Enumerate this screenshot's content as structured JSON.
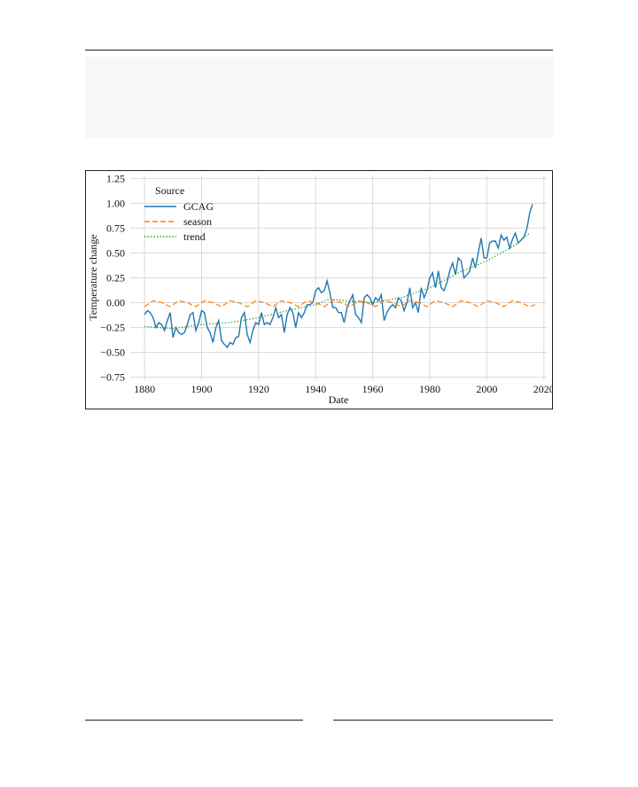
{
  "page": {
    "header_rule": true,
    "footer_rule": true
  },
  "code_box": {
    "lines": []
  },
  "chart_data": {
    "type": "line",
    "title": "",
    "xlabel": "Date",
    "ylabel": "Temperature change",
    "xlim": [
      1875,
      2021
    ],
    "ylim": [
      -0.78,
      1.28
    ],
    "xticks": [
      1880,
      1900,
      1920,
      1940,
      1960,
      1980,
      2000,
      2020
    ],
    "yticks": [
      -0.75,
      -0.5,
      -0.25,
      0.0,
      0.25,
      0.5,
      0.75,
      1.0,
      1.25
    ],
    "ytick_labels": [
      "−0.75",
      "−0.50",
      "−0.25",
      "0.00",
      "0.25",
      "0.50",
      "0.75",
      "1.00",
      "1.25"
    ],
    "grid": true,
    "legend": {
      "title": "Source",
      "placement": "top-left"
    },
    "series": [
      {
        "name": "GCAG",
        "style": "solid",
        "color": "#1f77b4",
        "x": [
          1880,
          1881,
          1882,
          1883,
          1884,
          1885,
          1886,
          1887,
          1888,
          1889,
          1890,
          1891,
          1892,
          1893,
          1894,
          1895,
          1896,
          1897,
          1898,
          1899,
          1900,
          1901,
          1902,
          1903,
          1904,
          1905,
          1906,
          1907,
          1908,
          1909,
          1910,
          1911,
          1912,
          1913,
          1914,
          1915,
          1916,
          1917,
          1918,
          1919,
          1920,
          1921,
          1922,
          1923,
          1924,
          1925,
          1926,
          1927,
          1928,
          1929,
          1930,
          1931,
          1932,
          1933,
          1934,
          1935,
          1936,
          1937,
          1938,
          1939,
          1940,
          1941,
          1942,
          1943,
          1944,
          1945,
          1946,
          1947,
          1948,
          1949,
          1950,
          1951,
          1952,
          1953,
          1954,
          1955,
          1956,
          1957,
          1958,
          1959,
          1960,
          1961,
          1962,
          1963,
          1964,
          1965,
          1966,
          1967,
          1968,
          1969,
          1970,
          1971,
          1972,
          1973,
          1974,
          1975,
          1976,
          1977,
          1978,
          1979,
          1980,
          1981,
          1982,
          1983,
          1984,
          1985,
          1986,
          1987,
          1988,
          1989,
          1990,
          1991,
          1992,
          1993,
          1994,
          1995,
          1996,
          1997,
          1998,
          1999,
          2000,
          2001,
          2002,
          2003,
          2004,
          2005,
          2006,
          2007,
          2008,
          2009,
          2010,
          2011,
          2012,
          2013,
          2014,
          2015,
          2016
        ],
        "values": [
          -0.12,
          -0.08,
          -0.1,
          -0.15,
          -0.25,
          -0.2,
          -0.22,
          -0.28,
          -0.18,
          -0.1,
          -0.35,
          -0.25,
          -0.3,
          -0.32,
          -0.3,
          -0.22,
          -0.12,
          -0.1,
          -0.28,
          -0.2,
          -0.08,
          -0.1,
          -0.25,
          -0.3,
          -0.4,
          -0.25,
          -0.18,
          -0.38,
          -0.42,
          -0.45,
          -0.4,
          -0.42,
          -0.35,
          -0.34,
          -0.15,
          -0.1,
          -0.32,
          -0.4,
          -0.28,
          -0.2,
          -0.22,
          -0.1,
          -0.22,
          -0.2,
          -0.22,
          -0.15,
          -0.05,
          -0.15,
          -0.12,
          -0.3,
          -0.12,
          -0.05,
          -0.1,
          -0.25,
          -0.1,
          -0.15,
          -0.1,
          -0.02,
          -0.02,
          0.0,
          0.12,
          0.15,
          0.1,
          0.12,
          0.22,
          0.1,
          -0.05,
          -0.05,
          -0.1,
          -0.1,
          -0.2,
          -0.05,
          0.02,
          0.08,
          -0.12,
          -0.15,
          -0.2,
          0.05,
          0.08,
          0.05,
          -0.02,
          0.05,
          0.02,
          0.08,
          -0.18,
          -0.1,
          -0.05,
          -0.02,
          -0.05,
          0.05,
          0.02,
          -0.08,
          0.0,
          0.15,
          -0.05,
          0.0,
          -0.1,
          0.15,
          0.05,
          0.12,
          0.25,
          0.3,
          0.15,
          0.32,
          0.15,
          0.12,
          0.2,
          0.32,
          0.4,
          0.28,
          0.45,
          0.42,
          0.25,
          0.28,
          0.32,
          0.45,
          0.35,
          0.5,
          0.65,
          0.45,
          0.45,
          0.6,
          0.62,
          0.62,
          0.55,
          0.68,
          0.63,
          0.66,
          0.55,
          0.64,
          0.7,
          0.6,
          0.63,
          0.66,
          0.74,
          0.9,
          0.99
        ]
      },
      {
        "name": "season",
        "style": "dashed",
        "color": "#ff7f0e",
        "x": [
          1880,
          1883,
          1886,
          1889,
          1892,
          1895,
          1898,
          1901,
          1904,
          1907,
          1910,
          1913,
          1916,
          1919,
          1922,
          1925,
          1928,
          1931,
          1934,
          1937,
          1940,
          1943,
          1946,
          1949,
          1952,
          1955,
          1958,
          1961,
          1964,
          1967,
          1970,
          1973,
          1976,
          1979,
          1982,
          1985,
          1988,
          1991,
          1994,
          1997,
          2000,
          2003,
          2006,
          2009,
          2012,
          2015,
          2017
        ],
        "values": [
          -0.04,
          0.02,
          0.0,
          -0.04,
          0.02,
          0.0,
          -0.04,
          0.02,
          0.0,
          -0.04,
          0.02,
          0.0,
          -0.04,
          0.02,
          0.0,
          -0.04,
          0.02,
          0.0,
          -0.04,
          0.02,
          0.0,
          -0.04,
          0.02,
          0.0,
          -0.04,
          0.02,
          0.0,
          -0.04,
          0.02,
          0.0,
          -0.04,
          0.02,
          0.0,
          -0.04,
          0.02,
          0.0,
          -0.04,
          0.02,
          0.0,
          -0.04,
          0.02,
          0.0,
          -0.04,
          0.02,
          0.0,
          -0.04,
          -0.02
        ]
      },
      {
        "name": "trend",
        "style": "dotted",
        "color": "#2ca02c",
        "x": [
          1880,
          1890,
          1900,
          1910,
          1920,
          1930,
          1940,
          1945,
          1950,
          1960,
          1970,
          1980,
          1990,
          2000,
          2010,
          2015
        ],
        "values": [
          -0.24,
          -0.26,
          -0.22,
          -0.2,
          -0.15,
          -0.08,
          -0.02,
          0.04,
          0.02,
          0.0,
          0.05,
          0.15,
          0.3,
          0.42,
          0.58,
          0.7
        ]
      }
    ]
  }
}
